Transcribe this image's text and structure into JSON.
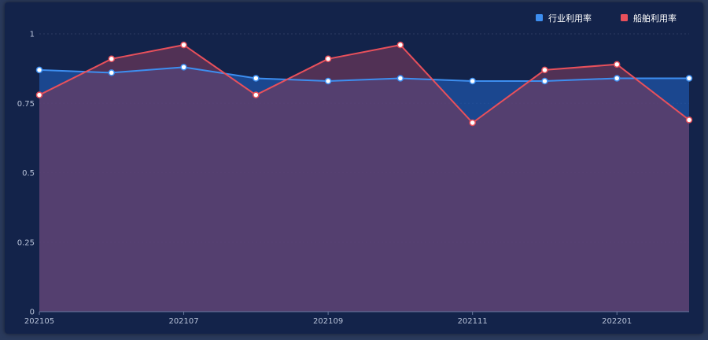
{
  "chart_data": {
    "type": "line",
    "x": [
      "202105",
      "202106",
      "202107",
      "202108",
      "202109",
      "202110",
      "202111",
      "202112",
      "202201",
      "202202"
    ],
    "x_tick_labels": [
      "202105",
      "202107",
      "202109",
      "202111",
      "202201"
    ],
    "y_tick_labels": [
      "0",
      "0.25",
      "0.5",
      "0.75",
      "1"
    ],
    "ylim": [
      0,
      1
    ],
    "grid": true,
    "legend_position": "top-right",
    "series": [
      {
        "name": "行业利用率",
        "color": "#3d8ef0",
        "values": [
          0.87,
          0.86,
          0.88,
          0.84,
          0.83,
          0.84,
          0.83,
          0.83,
          0.84,
          0.84
        ]
      },
      {
        "name": "船舶利用率",
        "color": "#e8505b",
        "values": [
          0.78,
          0.91,
          0.96,
          0.78,
          0.91,
          0.96,
          0.68,
          0.87,
          0.89,
          0.69
        ]
      }
    ]
  }
}
